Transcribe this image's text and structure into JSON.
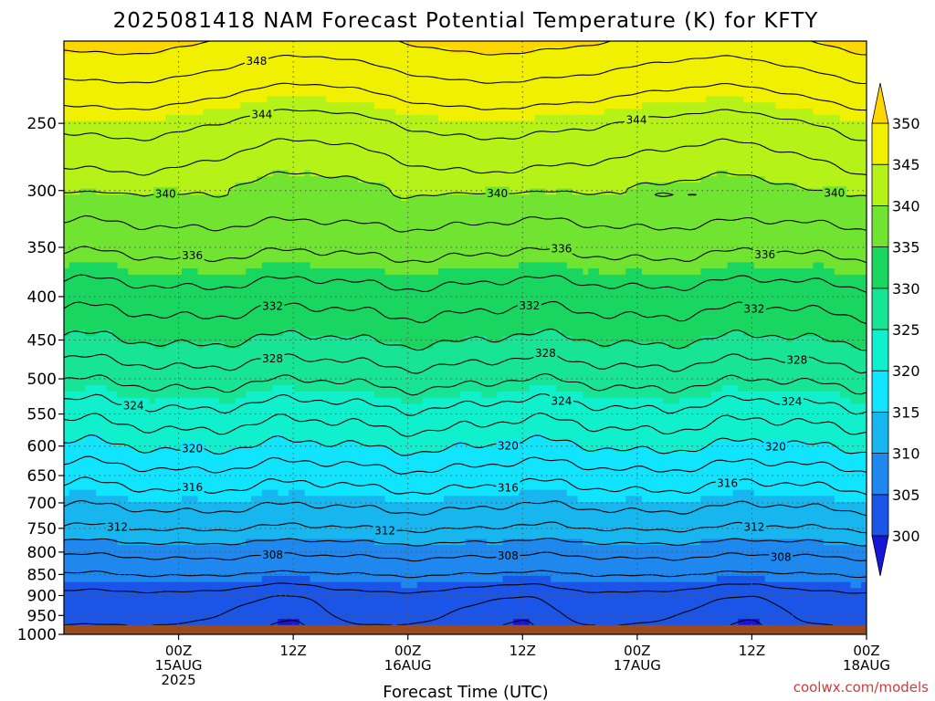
{
  "chart_data": {
    "type": "heatmap",
    "title": "2025081418 NAM Forecast Potential Temperature (K) for KFTY",
    "xlabel": "Forecast Time (UTC)",
    "ylabel": "",
    "y_axis": {
      "scale": "log-pressure",
      "reversed": true,
      "ticks": [
        "250",
        "300",
        "350",
        "400",
        "450",
        "500",
        "550",
        "600",
        "650",
        "700",
        "750",
        "800",
        "850",
        "900",
        "950",
        "1000"
      ],
      "range_hPa": [
        200,
        1000
      ]
    },
    "x_axis": {
      "range_hours": [
        -9,
        96
      ],
      "ticks": [
        {
          "hour": 6,
          "lines": [
            "00Z",
            "15AUG",
            "2025"
          ]
        },
        {
          "hour": 21,
          "lines": [
            "12Z"
          ]
        },
        {
          "hour": 36,
          "lines": [
            "00Z",
            "16AUG"
          ]
        },
        {
          "hour": 51,
          "lines": [
            "12Z"
          ]
        },
        {
          "hour": 66,
          "lines": [
            "00Z",
            "17AUG"
          ]
        },
        {
          "hour": 81,
          "lines": [
            "12Z"
          ]
        },
        {
          "hour": 96,
          "lines": [
            "00Z",
            "18AUG"
          ]
        }
      ],
      "grid": "dotted"
    },
    "colorbar": {
      "levels": [
        300,
        305,
        310,
        315,
        320,
        325,
        330,
        335,
        340,
        345,
        350
      ],
      "colors": [
        "#1616d8",
        "#1a55e8",
        "#1e88ee",
        "#18b6ee",
        "#10e4ff",
        "#10f0cc",
        "#18e496",
        "#18d660",
        "#70e430",
        "#b4f218",
        "#f0f000",
        "#ffd600"
      ],
      "extend": "both"
    },
    "profile_mean": [
      {
        "p": 200,
        "theta": 350
      },
      {
        "p": 250,
        "theta": 344
      },
      {
        "p": 300,
        "theta": 340
      },
      {
        "p": 350,
        "theta": 336.5
      },
      {
        "p": 400,
        "theta": 333
      },
      {
        "p": 450,
        "theta": 330
      },
      {
        "p": 500,
        "theta": 326.5
      },
      {
        "p": 550,
        "theta": 323
      },
      {
        "p": 600,
        "theta": 320
      },
      {
        "p": 650,
        "theta": 317
      },
      {
        "p": 700,
        "theta": 314.5
      },
      {
        "p": 750,
        "theta": 312
      },
      {
        "p": 800,
        "theta": 308.5
      },
      {
        "p": 850,
        "theta": 306
      },
      {
        "p": 900,
        "theta": 303.5
      },
      {
        "p": 950,
        "theta": 302.5
      },
      {
        "p": 975,
        "theta": 302
      }
    ],
    "contour_interval": 2,
    "contour_labels": [
      {
        "value": "348",
        "hour": 16
      },
      {
        "value": "344",
        "hour": 66
      },
      {
        "value": "344",
        "hour": 17
      },
      {
        "value": "340",
        "hour": 48
      },
      {
        "value": "340",
        "hour": 92
      },
      {
        "value": "340",
        "hour": 4
      },
      {
        "value": "336",
        "hour": 8
      },
      {
        "value": "336",
        "hour": 56
      },
      {
        "value": "336",
        "hour": 83
      },
      {
        "value": "332",
        "hour": 18
      },
      {
        "value": "332",
        "hour": 52
      },
      {
        "value": "332",
        "hour": 81
      },
      {
        "value": "328",
        "hour": 18
      },
      {
        "value": "328",
        "hour": 54
      },
      {
        "value": "328",
        "hour": 87
      },
      {
        "value": "324",
        "hour": 0
      },
      {
        "value": "324",
        "hour": 56
      },
      {
        "value": "324",
        "hour": 86
      },
      {
        "value": "320",
        "hour": 8
      },
      {
        "value": "320",
        "hour": 49
      },
      {
        "value": "320",
        "hour": 84
      },
      {
        "value": "316",
        "hour": 8
      },
      {
        "value": "316",
        "hour": 49
      },
      {
        "value": "316",
        "hour": 78
      },
      {
        "value": "312",
        "hour": 33
      },
      {
        "value": "312",
        "hour": 81
      },
      {
        "value": "312",
        "hour": -2
      },
      {
        "value": "308",
        "hour": 18
      },
      {
        "value": "308",
        "hour": 49
      },
      {
        "value": "308",
        "hour": 85
      }
    ],
    "boundary_layer_minima": [
      {
        "hour": 21,
        "p": 935
      },
      {
        "hour": 51,
        "p": 940
      },
      {
        "hour": 81,
        "p": 940
      }
    ],
    "ground": {
      "below_hPa": 975,
      "color": "#9b4a1e"
    }
  },
  "credit": "coolwx.com/models"
}
